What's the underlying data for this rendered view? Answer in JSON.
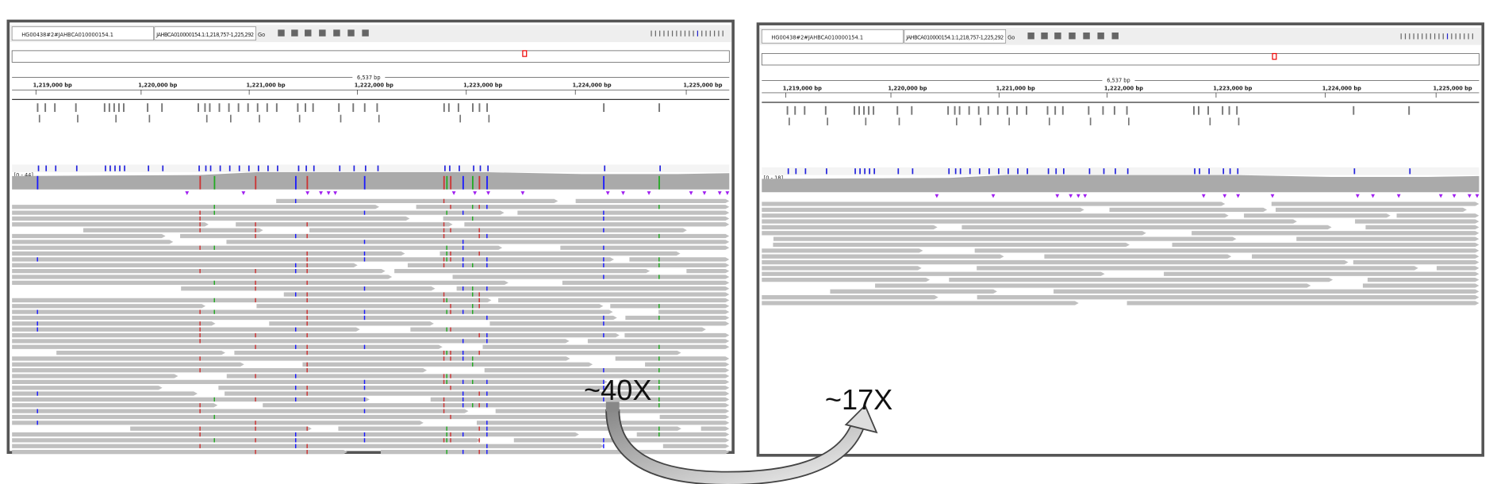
{
  "panels": [
    {
      "genome": "HG00438#2#JAHBCA010000154.1",
      "locus": "JAHBCA010000154.1:1,218,757-1,225,292",
      "go": "Go",
      "span": "6,537 bp",
      "ruler": [
        "1,219,000 bp",
        "1,220,000 bp",
        "1,221,000 bp",
        "1,222,000 bp",
        "1,223,000 bp",
        "1,224,000 bp",
        "1,225,000 bp"
      ],
      "coverage_range": "[0 - 44]",
      "coverage_label": "~40X"
    },
    {
      "genome": "HG00438#2#JAHBCA010000154.1",
      "locus": "JAHBCA010000154.1:1,218,757-1,225,292",
      "go": "Go",
      "span": "6,537 bp",
      "ruler": [
        "1,219,000 bp",
        "1,220,000 bp",
        "1,221,000 bp",
        "1,222,000 bp",
        "1,223,000 bp",
        "1,224,000 bp",
        "1,225,000 bp"
      ],
      "coverage_range": "[0 - 18]",
      "coverage_label": "~17X"
    }
  ]
}
